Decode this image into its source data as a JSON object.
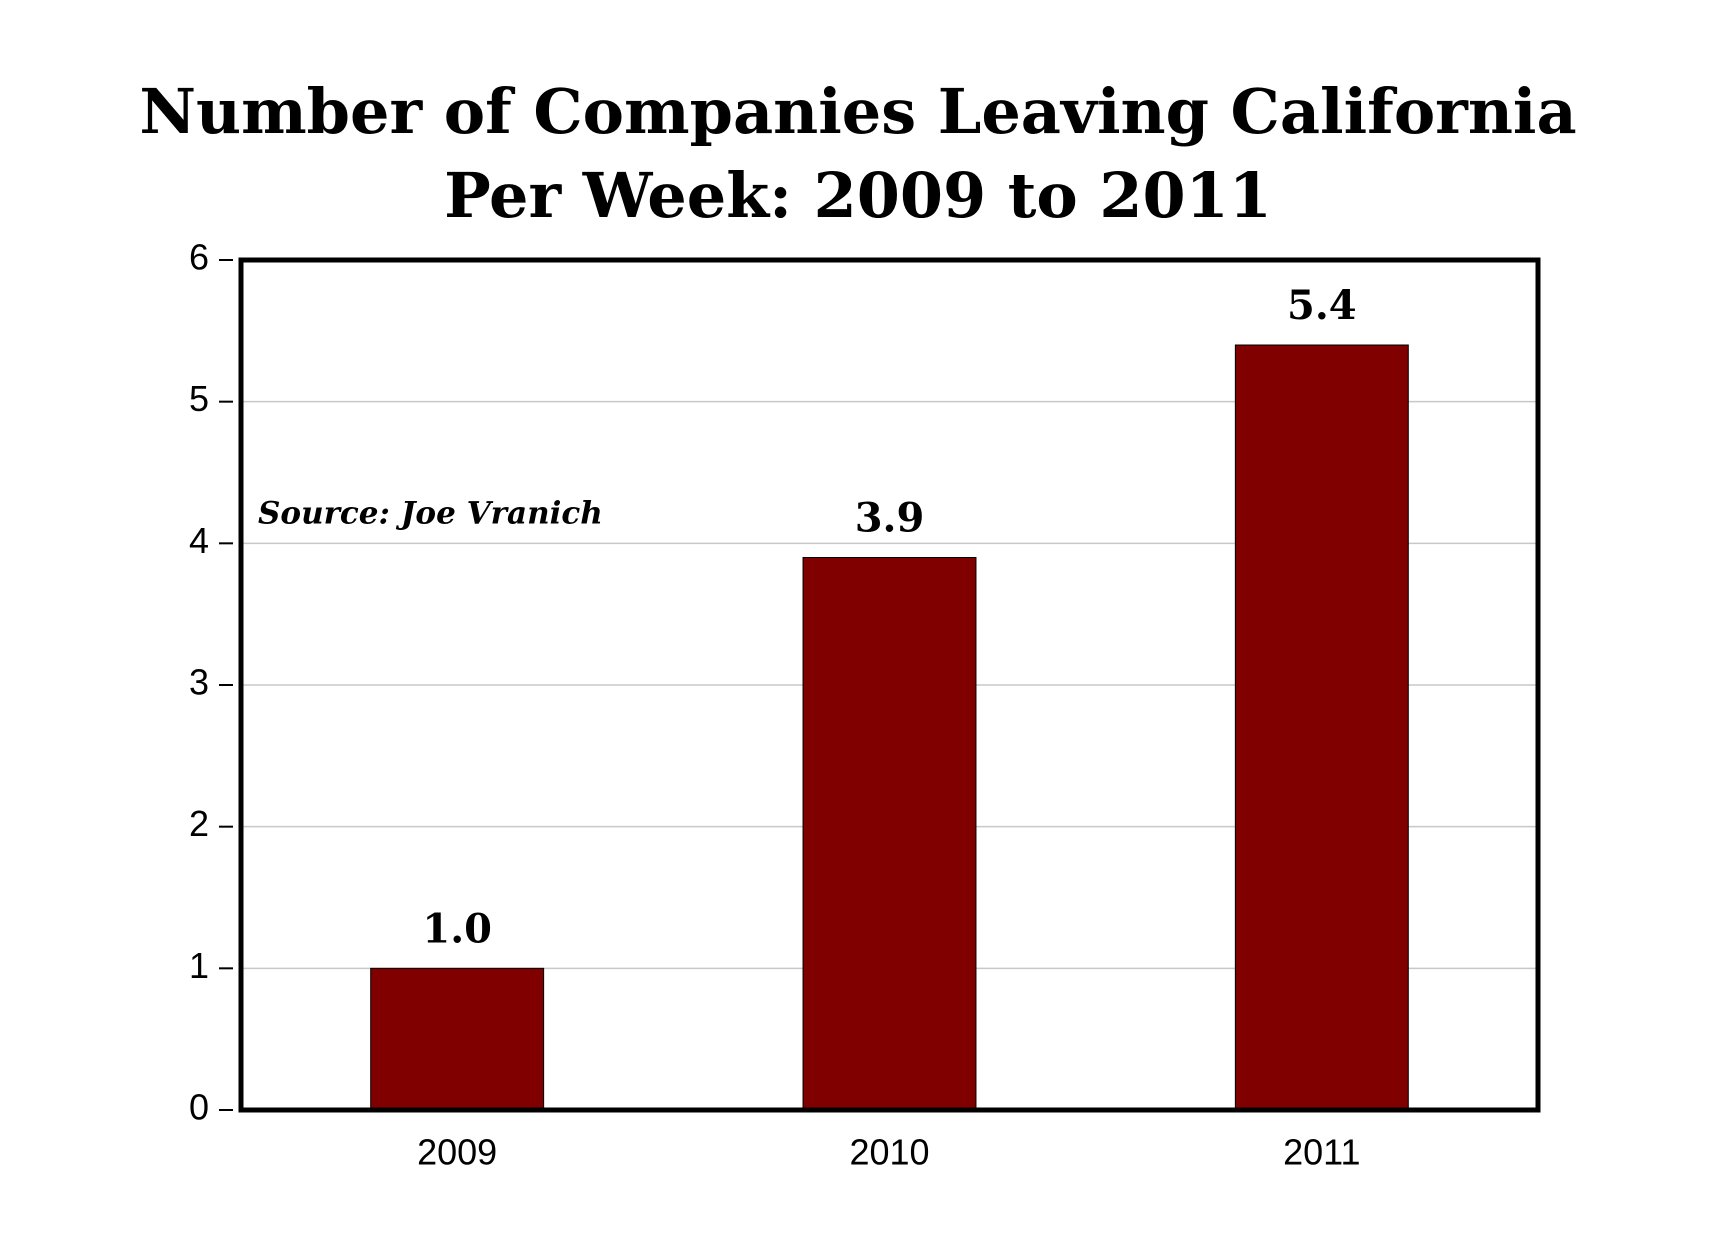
{
  "chart_data": {
    "type": "bar",
    "title": [
      "Number of Companies Leaving California",
      "Per Week: 2009 to 2011"
    ],
    "annotation": "Source: Joe Vranich",
    "categories": [
      "2009",
      "2010",
      "2011"
    ],
    "values": [
      1,
      3.9,
      5.4
    ],
    "value_labels": [
      "1.0",
      "3.9",
      "5.4"
    ],
    "color": "#800000",
    "ylim": [
      0,
      6
    ],
    "yticks": [
      0,
      1,
      2,
      3,
      4,
      5,
      6
    ],
    "grid": true
  }
}
